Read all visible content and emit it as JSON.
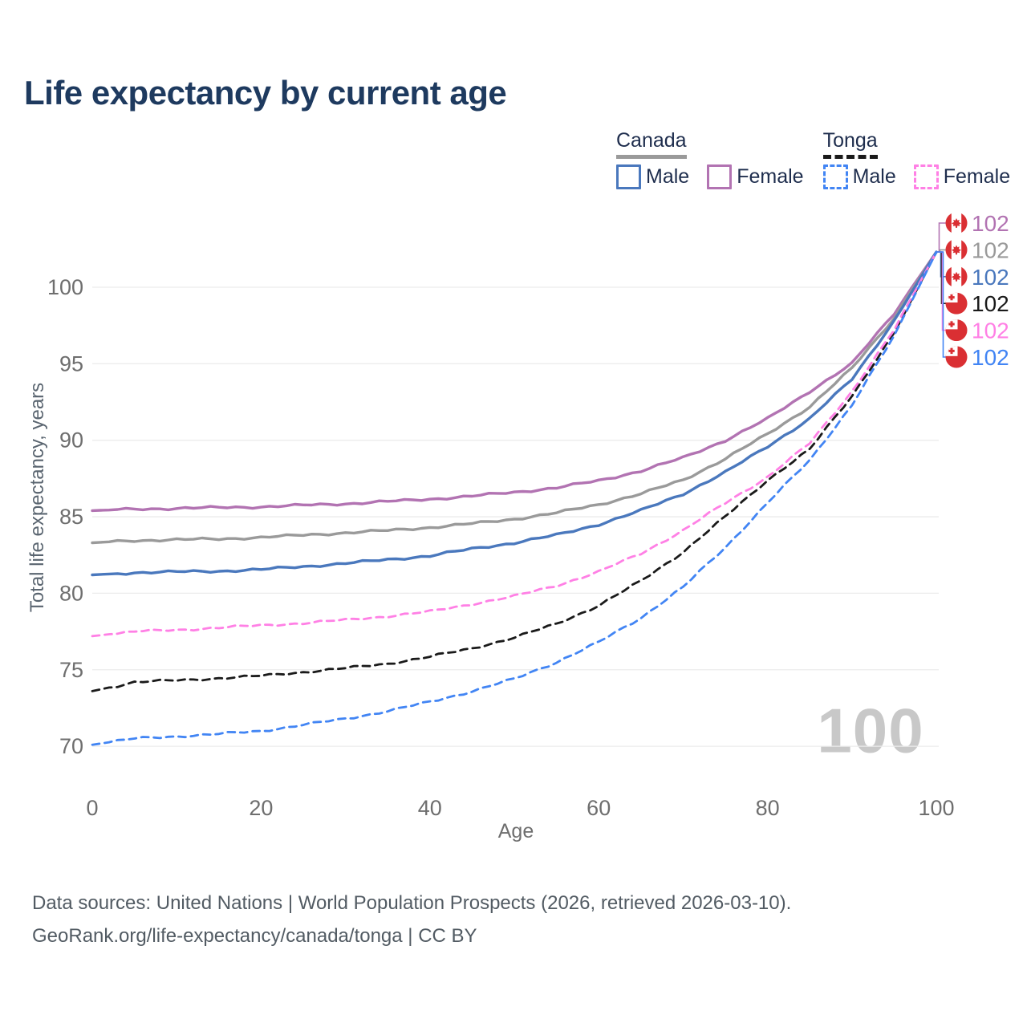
{
  "title": "Life expectancy by current age",
  "y_axis_title": "Total life expectancy, years",
  "x_axis_title": "Age",
  "watermark": "100",
  "footer": {
    "line1": "Data sources: United Nations | World Population Prospects (2026, retrieved 2026-03-10).",
    "line2": "GeoRank.org/life-expectancy/canada/tonga | CC BY"
  },
  "colors": {
    "title": "#1e3a5f",
    "legend_text": "#1e2d4d",
    "axis_title": "#5a6570",
    "axis_text": "#6e6e6e",
    "grid": "#ececec",
    "watermark": "#c8c8c8",
    "footer": "#525b63",
    "flag_red": "#da2f33",
    "flag_white": "#ffffff"
  },
  "legend": {
    "groups": [
      {
        "name": "Canada",
        "line_style": "solid",
        "underline_color": "#9a9a9a",
        "items": [
          {
            "label": "Male",
            "color": "#4a78bd",
            "dashed": false
          },
          {
            "label": "Female",
            "color": "#b273b2",
            "dashed": false
          }
        ]
      },
      {
        "name": "Tonga",
        "line_style": "dashed",
        "underline_color": "#1a1a1a",
        "items": [
          {
            "label": "Male",
            "color": "#4285f4",
            "dashed": true
          },
          {
            "label": "Female",
            "color": "#ff80e5",
            "dashed": true
          }
        ]
      }
    ]
  },
  "chart_data": {
    "type": "line",
    "title": "Life expectancy by current age",
    "xlabel": "Age",
    "ylabel": "Total life expectancy, years",
    "xlim": [
      0,
      100
    ],
    "ylim": [
      66,
      103
    ],
    "xticks": [
      0,
      20,
      40,
      60,
      80,
      100
    ],
    "yticks": [
      70,
      75,
      80,
      85,
      90,
      95,
      100
    ],
    "grid": "horizontal",
    "legend_position": "top-right",
    "x": [
      0,
      5,
      10,
      15,
      20,
      25,
      30,
      35,
      40,
      45,
      50,
      55,
      60,
      65,
      70,
      75,
      80,
      85,
      90,
      95,
      100
    ],
    "series": [
      {
        "name": "Canada Female",
        "country": "Canada",
        "sex": "Female",
        "color": "#b273b2",
        "dashed": false,
        "flag": "canada-flag-icon",
        "end_label": "102",
        "values": [
          85.4,
          85.5,
          85.55,
          85.6,
          85.65,
          85.75,
          85.85,
          86.0,
          86.15,
          86.35,
          86.6,
          86.9,
          87.35,
          88.0,
          88.85,
          90.0,
          91.4,
          93.2,
          95.0,
          98.3,
          102.3
        ]
      },
      {
        "name": "Canada",
        "country": "Canada",
        "sex": "Both",
        "color": "#9a9a9a",
        "dashed": false,
        "flag": "canada-flag-icon",
        "end_label": "102",
        "values": [
          83.3,
          83.45,
          83.5,
          83.55,
          83.65,
          83.8,
          83.95,
          84.1,
          84.3,
          84.55,
          84.85,
          85.25,
          85.8,
          86.5,
          87.4,
          88.8,
          90.4,
          92.2,
          94.7,
          98.0,
          102.3
        ]
      },
      {
        "name": "Canada Male",
        "country": "Canada",
        "sex": "Male",
        "color": "#4a78bd",
        "dashed": false,
        "flag": "canada-flag-icon",
        "end_label": "102",
        "values": [
          81.2,
          81.35,
          81.4,
          81.45,
          81.55,
          81.75,
          81.95,
          82.2,
          82.45,
          82.9,
          83.3,
          83.8,
          84.5,
          85.4,
          86.5,
          87.9,
          89.6,
          91.4,
          94.0,
          97.8,
          102.3
        ]
      },
      {
        "name": "Tonga",
        "country": "Tonga",
        "sex": "Both",
        "color": "#1a1a1a",
        "dashed": true,
        "flag": "tonga-flag-icon",
        "end_label": "102",
        "values": [
          73.6,
          74.2,
          74.3,
          74.45,
          74.6,
          74.85,
          75.1,
          75.4,
          75.85,
          76.4,
          77.1,
          78.0,
          79.2,
          80.8,
          82.7,
          85.0,
          87.4,
          89.4,
          92.9,
          97.0,
          102.3
        ]
      },
      {
        "name": "Tonga Female",
        "country": "Tonga",
        "sex": "Female",
        "color": "#ff80e5",
        "dashed": true,
        "flag": "tonga-flag-icon",
        "end_label": "102",
        "values": [
          77.2,
          77.5,
          77.6,
          77.75,
          77.9,
          78.05,
          78.25,
          78.5,
          78.8,
          79.3,
          79.8,
          80.5,
          81.4,
          82.6,
          84.1,
          85.9,
          87.6,
          89.8,
          93.2,
          97.2,
          102.3
        ]
      },
      {
        "name": "Tonga Male",
        "country": "Tonga",
        "sex": "Male",
        "color": "#4285f4",
        "dashed": true,
        "flag": "tonga-flag-icon",
        "end_label": "102",
        "values": [
          70.1,
          70.5,
          70.65,
          70.8,
          71.0,
          71.4,
          71.8,
          72.3,
          72.9,
          73.6,
          74.4,
          75.5,
          76.8,
          78.4,
          80.4,
          83.0,
          85.9,
          88.7,
          92.3,
          96.8,
          102.3
        ]
      }
    ]
  }
}
